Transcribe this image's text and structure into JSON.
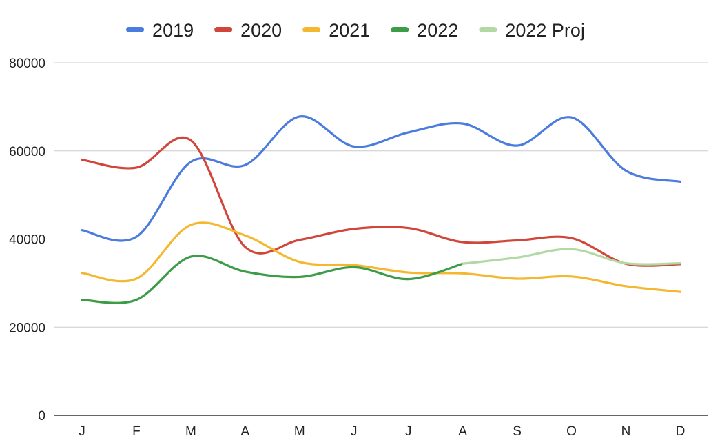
{
  "chart_data": {
    "type": "line",
    "title": "",
    "xlabel": "",
    "ylabel": "",
    "categories": [
      "J",
      "F",
      "M",
      "A",
      "M",
      "J",
      "J",
      "A",
      "S",
      "O",
      "N",
      "D"
    ],
    "ylim": [
      0,
      80000
    ],
    "yticks": [
      0,
      20000,
      40000,
      60000,
      80000
    ],
    "grid": true,
    "legend_position": "top",
    "smooth": true,
    "series": [
      {
        "name": "2019",
        "color": "#4a7bde",
        "values": [
          42000,
          40500,
          57500,
          56800,
          67800,
          61000,
          64200,
          66200,
          61200,
          67600,
          55500,
          53000
        ]
      },
      {
        "name": "2020",
        "color": "#d0463a",
        "values": [
          58000,
          56200,
          62400,
          38200,
          39800,
          42300,
          42500,
          39300,
          39700,
          40200,
          34400,
          34300
        ]
      },
      {
        "name": "2021",
        "color": "#f4b730",
        "values": [
          32300,
          31000,
          43200,
          40800,
          34800,
          34100,
          32400,
          32200,
          31000,
          31500,
          29300,
          28000
        ]
      },
      {
        "name": "2022",
        "color": "#3d9c47",
        "values": [
          26200,
          26200,
          36000,
          32600,
          31400,
          33600,
          30900,
          34400,
          null,
          null,
          null,
          null
        ]
      },
      {
        "name": "2022 Proj",
        "color": "#b2d8a4",
        "values": [
          null,
          null,
          null,
          null,
          null,
          null,
          null,
          34400,
          35800,
          37700,
          34500,
          34500
        ]
      }
    ]
  }
}
